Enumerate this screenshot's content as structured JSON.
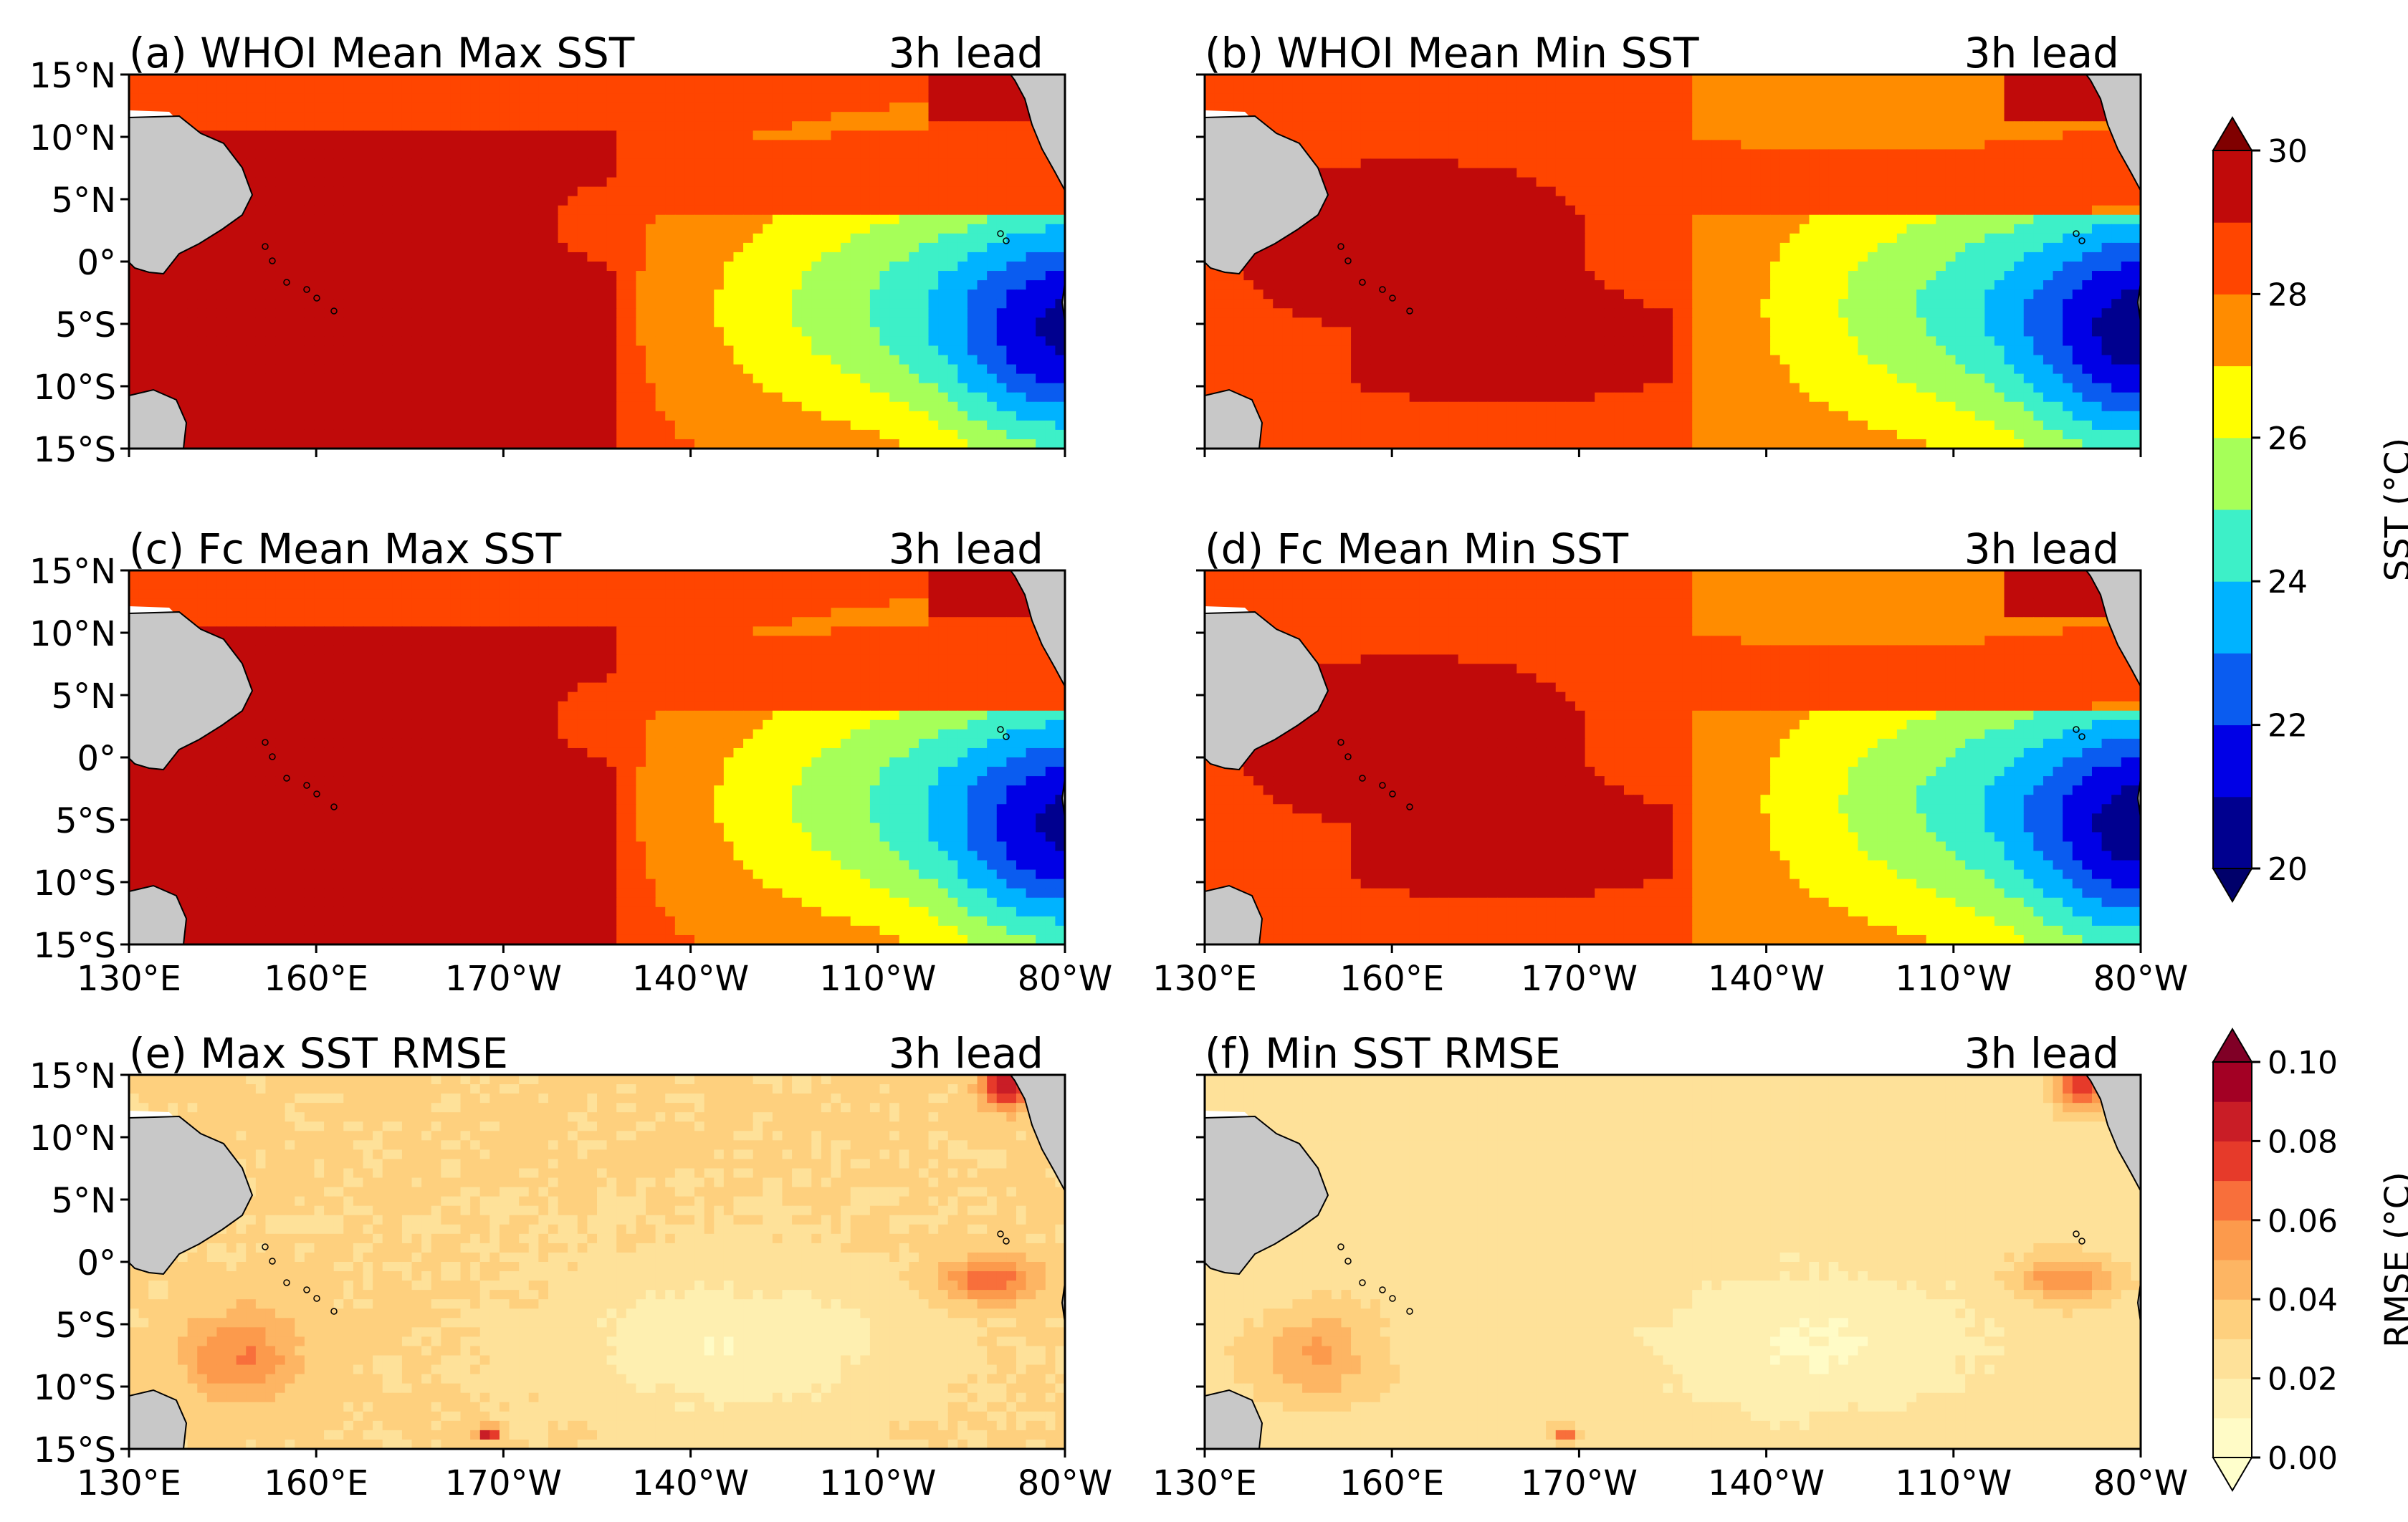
{
  "chart_data": {
    "type": "heatmap",
    "figure_layout": "3x2 map panels with two colorbars",
    "region": {
      "lon": [
        130,
        280
      ],
      "lat": [
        -15,
        15
      ]
    },
    "x_ticks": [
      "130°E",
      "160°E",
      "170°W",
      "140°W",
      "110°W",
      "80°W"
    ],
    "y_ticks": [
      "15°N",
      "10°N",
      "5°N",
      "0°",
      "5°S",
      "10°S",
      "15°S"
    ],
    "panels": [
      {
        "id": "a",
        "title": "(a) WHOI Mean Max SST",
        "lead": "3h lead",
        "field": "sst",
        "variant": "max"
      },
      {
        "id": "b",
        "title": "(b) WHOI Mean Min SST",
        "lead": "3h lead",
        "field": "sst",
        "variant": "min"
      },
      {
        "id": "c",
        "title": "(c) Fc Mean Max SST",
        "lead": "3h lead",
        "field": "sst",
        "variant": "max"
      },
      {
        "id": "d",
        "title": "(d) Fc Mean Min SST",
        "lead": "3h lead",
        "field": "sst",
        "variant": "min"
      },
      {
        "id": "e",
        "title": "(e) Max SST RMSE",
        "lead": "3h lead",
        "field": "rmse",
        "variant": "max"
      },
      {
        "id": "f",
        "title": "(f) Min SST RMSE",
        "lead": "3h lead",
        "field": "rmse",
        "variant": "min"
      }
    ],
    "colorbars": [
      {
        "id": "sst",
        "label": "SST (°C)",
        "range": [
          20,
          30
        ],
        "levels": [
          20,
          21,
          22,
          23,
          24,
          25,
          26,
          27,
          28,
          29,
          30
        ],
        "tick_labels": [
          "20",
          "22",
          "24",
          "26",
          "28",
          "30"
        ],
        "colors": [
          "#00008f",
          "#0000e6",
          "#0a5cf0",
          "#00b3ff",
          "#3df0c8",
          "#a6ff59",
          "#ffff00",
          "#ff8c00",
          "#ff4500",
          "#c00a0a"
        ],
        "over_color": "#800000",
        "under_color": "#00006a"
      },
      {
        "id": "rmse",
        "label": "RMSE (°C)",
        "range": [
          0,
          0.1
        ],
        "levels": [
          0,
          0.01,
          0.02,
          0.03,
          0.04,
          0.05,
          0.06,
          0.07,
          0.08,
          0.09,
          0.1
        ],
        "tick_labels": [
          "0.00",
          "0.02",
          "0.04",
          "0.06",
          "0.08",
          "0.10"
        ],
        "colors": [
          "#fffbc6",
          "#feefb0",
          "#fee199",
          "#fed07e",
          "#fdb563",
          "#fc9a4c",
          "#f86f3b",
          "#e63a2a",
          "#c91d26",
          "#a30024"
        ],
        "over_color": "#800026",
        "under_color": "#ffffcc"
      }
    ]
  }
}
